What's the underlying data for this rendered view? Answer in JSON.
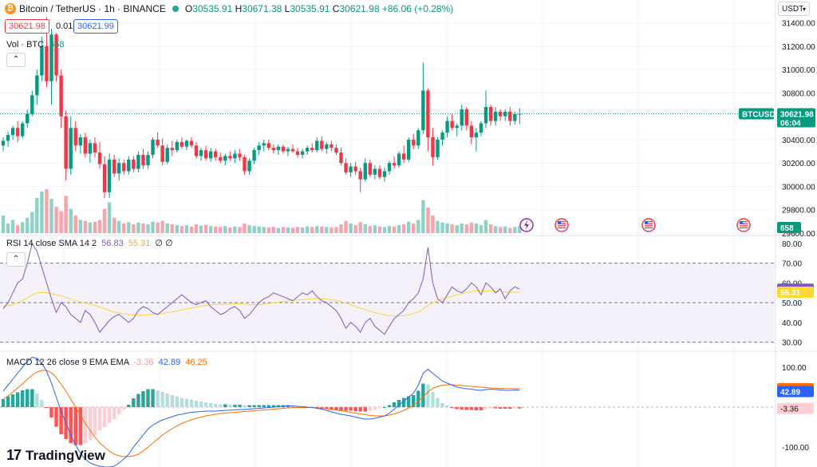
{
  "header": {
    "symbol_title": "Bitcoin / TetherUS · 1h · BINANCE",
    "open_label": "O",
    "open": "30535.91",
    "high_label": "H",
    "high": "30671.38",
    "low_label": "L",
    "low": "30535.91",
    "close_label": "C",
    "close": "30621.98",
    "change": "+86.06 (+0.28%)",
    "logo_icon": "bitcoin-logo-icon"
  },
  "trade": {
    "sell": "30621.98",
    "spread": "0.01",
    "buy": "30621.99"
  },
  "volume_legend": {
    "label": "Vol · BTC",
    "value": "658"
  },
  "currency_selector": {
    "value": "USDT"
  },
  "price_axis": {
    "ticks": [
      "31400.00",
      "31200.00",
      "31000.00",
      "30800.00",
      "30600.00",
      "30400.00",
      "30200.00",
      "30000.00",
      "29800.00",
      "29600.00"
    ],
    "last_price_symbol": "BTCUSDT",
    "last_price": "30621.98",
    "countdown": "06:04",
    "volume_tag": "658"
  },
  "rsi": {
    "legend": "RSI 14 close SMA 14 2",
    "rsi_value": "56.83",
    "sma_value": "55.31",
    "extra": "∅ ∅",
    "ticks": [
      "80.00",
      "70.00",
      "60.00",
      "50.00",
      "40.00",
      "30.00"
    ]
  },
  "macd": {
    "legend": "MACD 12 26 close 9 EMA EMA",
    "hist_value": "-3.36",
    "macd_value": "42.89",
    "signal_value": "46.25",
    "ticks": [
      "100.00",
      "0.00",
      "-100.00"
    ]
  },
  "watermark": {
    "text": "TradingView"
  },
  "colors": {
    "up": "#089981",
    "down": "#f23645",
    "rsi_line": "#7e57c2",
    "rsi_sma": "#fdd835",
    "macd_line": "#2962ff",
    "signal_line": "#ff6d00",
    "rsi_band": "#ede7f6"
  },
  "chart_data": {
    "type": "candlestick",
    "interval": "1h",
    "ylim": [
      29600,
      31500
    ],
    "candles": [
      [
        30350,
        30420,
        30300,
        30390
      ],
      [
        30390,
        30470,
        30340,
        30440
      ],
      [
        30440,
        30520,
        30400,
        30500
      ],
      [
        30500,
        30560,
        30380,
        30430
      ],
      [
        30430,
        30560,
        30410,
        30540
      ],
      [
        30540,
        30660,
        30500,
        30620
      ],
      [
        30620,
        30820,
        30600,
        30780
      ],
      [
        30780,
        31000,
        30700,
        30950
      ],
      [
        30950,
        31280,
        30900,
        31200
      ],
      [
        31200,
        31450,
        30850,
        30900
      ],
      [
        30900,
        31350,
        30700,
        31300
      ],
      [
        31300,
        31320,
        30900,
        30950
      ],
      [
        30950,
        31000,
        30500,
        30600
      ],
      [
        30600,
        30650,
        30050,
        30150
      ],
      [
        30150,
        30600,
        30100,
        30500
      ],
      [
        30500,
        30560,
        30300,
        30350
      ],
      [
        30350,
        30450,
        30280,
        30420
      ],
      [
        30420,
        30460,
        30250,
        30280
      ],
      [
        30280,
        30400,
        30200,
        30370
      ],
      [
        30370,
        30420,
        30250,
        30290
      ],
      [
        30290,
        30380,
        30150,
        30190
      ],
      [
        30190,
        30260,
        29900,
        29950
      ],
      [
        29950,
        30280,
        29900,
        30230
      ],
      [
        30230,
        30270,
        30080,
        30110
      ],
      [
        30110,
        30240,
        30050,
        30200
      ],
      [
        30200,
        30230,
        30100,
        30130
      ],
      [
        30130,
        30260,
        30100,
        30230
      ],
      [
        30230,
        30260,
        30120,
        30150
      ],
      [
        30150,
        30300,
        30120,
        30270
      ],
      [
        30270,
        30320,
        30150,
        30180
      ],
      [
        30180,
        30300,
        30150,
        30270
      ],
      [
        30270,
        30420,
        30240,
        30400
      ],
      [
        30400,
        30460,
        30330,
        30350
      ],
      [
        30350,
        30410,
        30180,
        30210
      ],
      [
        30210,
        30360,
        30190,
        30330
      ],
      [
        30330,
        30390,
        30260,
        30310
      ],
      [
        30310,
        30400,
        30290,
        30380
      ],
      [
        30380,
        30420,
        30320,
        30340
      ],
      [
        30340,
        30400,
        30310,
        30390
      ],
      [
        30390,
        30420,
        30330,
        30350
      ],
      [
        30350,
        30380,
        30240,
        30260
      ],
      [
        30260,
        30330,
        30220,
        30310
      ],
      [
        30310,
        30350,
        30220,
        30240
      ],
      [
        30240,
        30330,
        30210,
        30300
      ],
      [
        30300,
        30320,
        30220,
        30250
      ],
      [
        30250,
        30290,
        30200,
        30220
      ],
      [
        30220,
        30280,
        30180,
        30260
      ],
      [
        30260,
        30300,
        30220,
        30240
      ],
      [
        30240,
        30310,
        30200,
        30280
      ],
      [
        30280,
        30320,
        30220,
        30250
      ],
      [
        30250,
        30270,
        30100,
        30130
      ],
      [
        30130,
        30240,
        30100,
        30220
      ],
      [
        30220,
        30330,
        30190,
        30310
      ],
      [
        30310,
        30380,
        30270,
        30350
      ],
      [
        30350,
        30400,
        30300,
        30370
      ],
      [
        30370,
        30400,
        30310,
        30330
      ],
      [
        30330,
        30360,
        30280,
        30310
      ],
      [
        30310,
        30360,
        30270,
        30340
      ],
      [
        30340,
        30360,
        30280,
        30300
      ],
      [
        30300,
        30340,
        30260,
        30320
      ],
      [
        30320,
        30360,
        30290,
        30300
      ],
      [
        30300,
        30330,
        30250,
        30270
      ],
      [
        30270,
        30320,
        30240,
        30300
      ],
      [
        30300,
        30350,
        30270,
        30330
      ],
      [
        30330,
        30370,
        30290,
        30310
      ],
      [
        30310,
        30420,
        30290,
        30390
      ],
      [
        30390,
        30430,
        30300,
        30320
      ],
      [
        30320,
        30380,
        30280,
        30360
      ],
      [
        30360,
        30390,
        30300,
        30330
      ],
      [
        30330,
        30360,
        30270,
        30290
      ],
      [
        30290,
        30330,
        30180,
        30200
      ],
      [
        30200,
        30240,
        30100,
        30120
      ],
      [
        30120,
        30200,
        30080,
        30170
      ],
      [
        30170,
        30210,
        30100,
        30130
      ],
      [
        30130,
        30160,
        29950,
        30060
      ],
      [
        30060,
        30240,
        30040,
        30200
      ],
      [
        30200,
        30230,
        30080,
        30100
      ],
      [
        30100,
        30180,
        30060,
        30150
      ],
      [
        30150,
        30180,
        30060,
        30080
      ],
      [
        30080,
        30160,
        30040,
        30130
      ],
      [
        30130,
        30220,
        30100,
        30200
      ],
      [
        30200,
        30260,
        30150,
        30180
      ],
      [
        30180,
        30300,
        30160,
        30280
      ],
      [
        30280,
        30350,
        30200,
        30230
      ],
      [
        30230,
        30420,
        30210,
        30400
      ],
      [
        30400,
        30450,
        30320,
        30350
      ],
      [
        30350,
        30500,
        30320,
        30480
      ],
      [
        30480,
        31060,
        30450,
        30820
      ],
      [
        30820,
        30840,
        30300,
        30420
      ],
      [
        30420,
        30500,
        30180,
        30250
      ],
      [
        30250,
        30420,
        30230,
        30400
      ],
      [
        30400,
        30480,
        30350,
        30460
      ],
      [
        30460,
        30600,
        30420,
        30560
      ],
      [
        30560,
        30620,
        30480,
        30500
      ],
      [
        30500,
        30540,
        30430,
        30520
      ],
      [
        30520,
        30700,
        30480,
        30660
      ],
      [
        30660,
        30680,
        30480,
        30520
      ],
      [
        30520,
        30560,
        30360,
        30420
      ],
      [
        30420,
        30500,
        30300,
        30460
      ],
      [
        30460,
        30560,
        30430,
        30540
      ],
      [
        30540,
        30820,
        30500,
        30680
      ],
      [
        30680,
        30700,
        30520,
        30560
      ],
      [
        30560,
        30680,
        30520,
        30640
      ],
      [
        30640,
        30660,
        30560,
        30600
      ],
      [
        30600,
        30660,
        30560,
        30640
      ],
      [
        30640,
        30680,
        30520,
        30560
      ],
      [
        30560,
        30640,
        30530,
        30620
      ],
      [
        30620,
        30671,
        30535,
        30621
      ]
    ],
    "volume": [
      40,
      22,
      30,
      18,
      25,
      35,
      48,
      80,
      95,
      100,
      78,
      60,
      50,
      85,
      55,
      40,
      30,
      28,
      24,
      26,
      30,
      55,
      70,
      35,
      28,
      22,
      25,
      20,
      24,
      22,
      20,
      26,
      24,
      28,
      22,
      20,
      18,
      16,
      18,
      15,
      20,
      17,
      19,
      16,
      15,
      14,
      16,
      13,
      15,
      14,
      22,
      18,
      16,
      15,
      14,
      13,
      14,
      12,
      14,
      13,
      12,
      14,
      13,
      15,
      14,
      16,
      15,
      14,
      13,
      14,
      20,
      28,
      22,
      18,
      25,
      20,
      16,
      18,
      15,
      14,
      16,
      15,
      18,
      20,
      26,
      22,
      30,
      75,
      58,
      40,
      28,
      24,
      22,
      20,
      18,
      22,
      20,
      24,
      22,
      18,
      30,
      20,
      16,
      14,
      15,
      12,
      14,
      16
    ],
    "rsi": [
      47,
      50,
      55,
      60,
      62,
      70,
      80,
      76,
      68,
      60,
      52,
      45,
      50,
      48,
      44,
      42,
      40,
      46,
      44,
      40,
      35,
      38,
      41,
      43,
      44,
      42,
      40,
      42,
      46,
      48,
      47,
      45,
      44,
      46,
      48,
      50,
      52,
      54,
      52,
      50,
      49,
      50,
      51,
      48,
      46,
      44,
      45,
      47,
      48,
      46,
      42,
      44,
      47,
      50,
      52,
      53,
      55,
      54,
      53,
      52,
      51,
      53,
      55,
      54,
      56,
      53,
      51,
      50,
      48,
      46,
      42,
      37,
      40,
      38,
      35,
      40,
      42,
      38,
      36,
      34,
      38,
      42,
      44,
      46,
      50,
      52,
      55,
      62,
      78,
      60,
      52,
      50,
      54,
      58,
      56,
      55,
      57,
      60,
      58,
      54,
      60,
      58,
      55,
      57,
      52,
      56,
      58,
      56.83
    ],
    "rsi_sma": [
      48,
      48.5,
      49,
      50,
      51,
      52.5,
      54,
      55,
      55.2,
      55,
      54.6,
      54,
      53.5,
      52.6,
      51.8,
      51,
      50.3,
      49.8,
      49.2,
      48.6,
      47.8,
      47,
      46,
      45.2,
      44.7,
      44.3,
      44,
      43.8,
      43.6,
      43.7,
      43.9,
      44.1,
      44.3,
      44.6,
      44.9,
      45.3,
      45.8,
      46.3,
      46.8,
      47.3,
      47.8,
      48.2,
      48.6,
      48.9,
      49.1,
      49.2,
      49.2,
      49.3,
      49.4,
      49.4,
      49.3,
      49.1,
      49,
      49.1,
      49.3,
      49.6,
      50,
      50.3,
      50.6,
      50.9,
      51.1,
      51.3,
      51.5,
      51.7,
      51.9,
      52,
      52,
      51.8,
      51.5,
      51.1,
      50.5,
      49.8,
      49,
      48.1,
      47.2,
      46.4,
      45.7,
      45,
      44.4,
      43.8,
      43.4,
      43.2,
      43.2,
      43.4,
      43.8,
      44.5,
      45.4,
      46.7,
      48.6,
      50,
      51,
      51.7,
      52.5,
      53.3,
      54,
      54.6,
      55.1,
      55.6,
      56,
      55.9,
      56,
      55.9,
      55.7,
      55.6,
      55.3,
      55.2,
      55.3,
      55.31
    ],
    "macd": [
      40,
      55,
      70,
      85,
      100,
      115,
      125,
      122,
      110,
      90,
      60,
      25,
      -10,
      -40,
      -70,
      -95,
      -115,
      -130,
      -140,
      -145,
      -148,
      -150,
      -150,
      -148,
      -140,
      -130,
      -118,
      -100,
      -85,
      -70,
      -55,
      -45,
      -38,
      -32,
      -28,
      -24,
      -20,
      -18,
      -15,
      -13,
      -12,
      -11,
      -10,
      -10,
      -10,
      -9,
      -8,
      -8,
      -7,
      -6,
      -6,
      -5,
      -4,
      -3,
      -2,
      -1,
      0,
      1,
      2,
      3,
      3,
      2,
      1,
      0,
      -1,
      -3,
      -5,
      -8,
      -12,
      -15,
      -18,
      -20,
      -22,
      -25,
      -28,
      -30,
      -30,
      -28,
      -25,
      -22,
      -15,
      -5,
      5,
      15,
      25,
      35,
      55,
      85,
      95,
      85,
      75,
      65,
      60,
      55,
      50,
      48,
      46,
      45,
      43,
      42,
      44,
      45,
      44,
      43,
      42,
      42,
      43,
      42.89
    ],
    "signal": [
      20,
      28,
      38,
      48,
      58,
      70,
      80,
      88,
      92,
      92,
      86,
      74,
      58,
      40,
      20,
      0,
      -20,
      -40,
      -58,
      -75,
      -90,
      -100,
      -110,
      -118,
      -122,
      -124,
      -124,
      -122,
      -118,
      -110,
      -100,
      -90,
      -80,
      -70,
      -62,
      -54,
      -47,
      -41,
      -36,
      -32,
      -28,
      -25,
      -22,
      -20,
      -18,
      -16,
      -15,
      -14,
      -13,
      -12,
      -11,
      -10,
      -9,
      -8,
      -7,
      -6,
      -5,
      -4,
      -3,
      -2,
      -1,
      -1,
      -1,
      -1,
      -1,
      -2,
      -3,
      -4,
      -5,
      -7,
      -9,
      -11,
      -13,
      -15,
      -17,
      -19,
      -21,
      -22,
      -22,
      -22,
      -20,
      -17,
      -13,
      -8,
      -2,
      5,
      14,
      26,
      38,
      47,
      52,
      55,
      56,
      56,
      55,
      54,
      53,
      52,
      51,
      50,
      49,
      48,
      47,
      47,
      46.5,
      46.3,
      46.3,
      46.25
    ],
    "histogram": [
      20,
      27,
      32,
      37,
      42,
      45,
      45,
      34,
      18,
      -2,
      -26,
      -49,
      -68,
      -80,
      -90,
      -95,
      -95,
      -90,
      -82,
      -70,
      -58,
      -50,
      -40,
      -30,
      -18,
      -6,
      6,
      22,
      33,
      40,
      45,
      45,
      42,
      38,
      34,
      30,
      27,
      23,
      21,
      19,
      16,
      14,
      12,
      10,
      8,
      7,
      7,
      6,
      6,
      6,
      5,
      5,
      5,
      5,
      5,
      5,
      5,
      5,
      5,
      5,
      4,
      3,
      2,
      1,
      0,
      -1,
      -2,
      -4,
      -7,
      -8,
      -9,
      -9,
      -9,
      -10,
      -11,
      -11,
      -9,
      -6,
      -3,
      0,
      5,
      12,
      18,
      23,
      27,
      30,
      41,
      59,
      57,
      38,
      23,
      10,
      4,
      -1,
      -5,
      -6,
      -7,
      -7,
      -8,
      -8,
      -5,
      -3,
      -3,
      -4,
      -4,
      -4,
      -3,
      -3.36
    ],
    "rsi_levels": {
      "upper": 70,
      "middle": 50,
      "lower": 30
    },
    "rsi_ylim": [
      27,
      82
    ],
    "macd_ylim": [
      -140,
      130
    ]
  }
}
